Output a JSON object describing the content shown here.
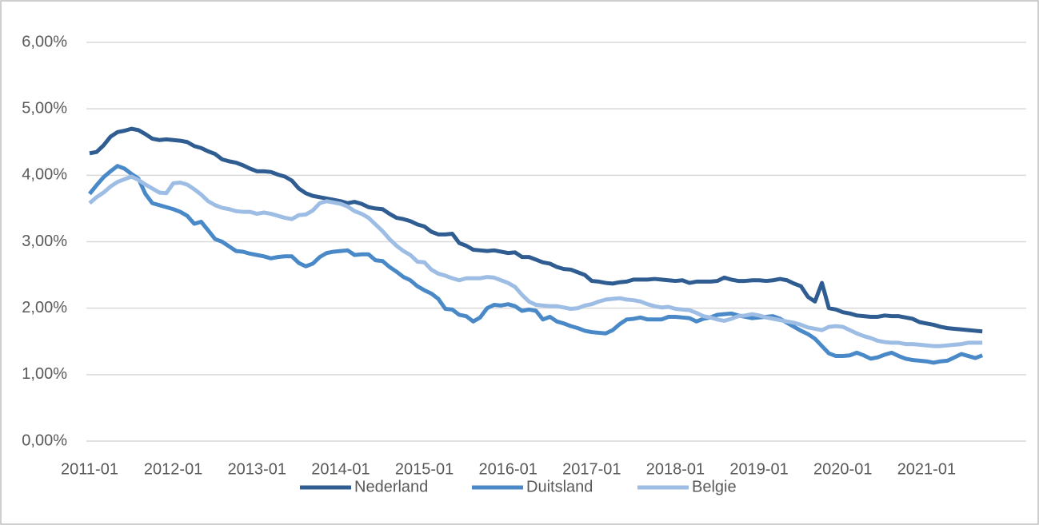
{
  "chart_data": {
    "type": "line",
    "categories": [
      "2011-01",
      null,
      null,
      null,
      null,
      null,
      null,
      null,
      null,
      null,
      null,
      null,
      "2012-01",
      null,
      null,
      null,
      null,
      null,
      null,
      null,
      null,
      null,
      null,
      null,
      "2013-01",
      null,
      null,
      null,
      null,
      null,
      null,
      null,
      null,
      null,
      null,
      null,
      "2014-01",
      null,
      null,
      null,
      null,
      null,
      null,
      null,
      null,
      null,
      null,
      null,
      "2015-01",
      null,
      null,
      null,
      null,
      null,
      null,
      null,
      null,
      null,
      null,
      null,
      "2016-01",
      null,
      null,
      null,
      null,
      null,
      null,
      null,
      null,
      null,
      null,
      null,
      "2017-01",
      null,
      null,
      null,
      null,
      null,
      null,
      null,
      null,
      null,
      null,
      null,
      "2018-01",
      null,
      null,
      null,
      null,
      null,
      null,
      null,
      null,
      null,
      null,
      null,
      "2019-01",
      null,
      null,
      null,
      null,
      null,
      null,
      null,
      null,
      null,
      null,
      null,
      "2020-01",
      null,
      null,
      null,
      null,
      null,
      null,
      null,
      null,
      null,
      null,
      null,
      "2021-01",
      null,
      null,
      null,
      null,
      null,
      null,
      null,
      null
    ],
    "series": [
      {
        "name": "Nederland",
        "color": "#2f5d92",
        "values": [
          4.33,
          4.35,
          4.45,
          4.58,
          4.65,
          4.67,
          4.7,
          4.68,
          4.62,
          4.55,
          4.53,
          4.54,
          4.53,
          4.52,
          4.5,
          4.44,
          4.41,
          4.36,
          4.32,
          4.24,
          4.21,
          4.19,
          4.15,
          4.1,
          4.06,
          4.06,
          4.05,
          4.01,
          3.98,
          3.92,
          3.8,
          3.73,
          3.69,
          3.67,
          3.65,
          3.63,
          3.61,
          3.58,
          3.6,
          3.57,
          3.52,
          3.5,
          3.49,
          3.42,
          3.36,
          3.34,
          3.31,
          3.26,
          3.23,
          3.15,
          3.11,
          3.11,
          3.12,
          2.98,
          2.94,
          2.88,
          2.87,
          2.86,
          2.87,
          2.85,
          2.83,
          2.84,
          2.77,
          2.77,
          2.73,
          2.69,
          2.67,
          2.62,
          2.59,
          2.58,
          2.54,
          2.5,
          2.41,
          2.4,
          2.38,
          2.37,
          2.39,
          2.4,
          2.43,
          2.43,
          2.43,
          2.44,
          2.43,
          2.42,
          2.41,
          2.42,
          2.38,
          2.4,
          2.4,
          2.4,
          2.41,
          2.46,
          2.43,
          2.41,
          2.41,
          2.42,
          2.42,
          2.41,
          2.42,
          2.44,
          2.42,
          2.37,
          2.33,
          2.17,
          2.1,
          2.38,
          2.0,
          1.98,
          1.94,
          1.92,
          1.89,
          1.88,
          1.87,
          1.87,
          1.89,
          1.88,
          1.88,
          1.86,
          1.84,
          1.79,
          1.77,
          1.75,
          1.72,
          1.7,
          1.69,
          1.68,
          1.67,
          1.66,
          1.65
        ]
      },
      {
        "name": "Duitsland",
        "color": "#4a89c8",
        "values": [
          3.72,
          3.85,
          3.97,
          4.06,
          4.14,
          4.1,
          4.02,
          3.95,
          3.72,
          3.58,
          3.55,
          3.52,
          3.49,
          3.45,
          3.39,
          3.27,
          3.3,
          3.17,
          3.04,
          3.0,
          2.93,
          2.86,
          2.85,
          2.82,
          2.8,
          2.78,
          2.75,
          2.77,
          2.78,
          2.78,
          2.68,
          2.63,
          2.67,
          2.77,
          2.83,
          2.85,
          2.86,
          2.87,
          2.8,
          2.81,
          2.81,
          2.72,
          2.71,
          2.62,
          2.55,
          2.47,
          2.42,
          2.33,
          2.27,
          2.22,
          2.14,
          1.99,
          1.98,
          1.9,
          1.88,
          1.8,
          1.86,
          2.0,
          2.05,
          2.04,
          2.06,
          2.03,
          1.96,
          1.98,
          1.96,
          1.83,
          1.87,
          1.8,
          1.77,
          1.73,
          1.7,
          1.66,
          1.64,
          1.63,
          1.62,
          1.67,
          1.76,
          1.83,
          1.84,
          1.86,
          1.83,
          1.83,
          1.83,
          1.87,
          1.87,
          1.86,
          1.85,
          1.8,
          1.84,
          1.86,
          1.9,
          1.91,
          1.92,
          1.89,
          1.87,
          1.85,
          1.86,
          1.87,
          1.88,
          1.84,
          1.78,
          1.72,
          1.66,
          1.61,
          1.54,
          1.43,
          1.32,
          1.28,
          1.28,
          1.29,
          1.33,
          1.29,
          1.24,
          1.26,
          1.3,
          1.33,
          1.28,
          1.24,
          1.22,
          1.21,
          1.2,
          1.18,
          1.2,
          1.21,
          1.26,
          1.31,
          1.28,
          1.25,
          1.29
        ]
      },
      {
        "name": "Belgie",
        "color": "#9dbde4",
        "values": [
          3.58,
          3.67,
          3.74,
          3.83,
          3.9,
          3.94,
          3.98,
          3.93,
          3.86,
          3.8,
          3.74,
          3.73,
          3.88,
          3.89,
          3.86,
          3.79,
          3.71,
          3.61,
          3.55,
          3.51,
          3.49,
          3.46,
          3.45,
          3.45,
          3.42,
          3.44,
          3.42,
          3.39,
          3.36,
          3.34,
          3.4,
          3.41,
          3.47,
          3.58,
          3.61,
          3.59,
          3.57,
          3.53,
          3.46,
          3.42,
          3.36,
          3.26,
          3.16,
          3.04,
          2.94,
          2.86,
          2.8,
          2.7,
          2.69,
          2.58,
          2.52,
          2.49,
          2.45,
          2.42,
          2.45,
          2.45,
          2.45,
          2.47,
          2.46,
          2.42,
          2.38,
          2.32,
          2.2,
          2.1,
          2.05,
          2.04,
          2.03,
          2.03,
          2.01,
          1.99,
          2.0,
          2.04,
          2.06,
          2.1,
          2.13,
          2.14,
          2.15,
          2.13,
          2.12,
          2.1,
          2.06,
          2.03,
          2.01,
          2.02,
          1.99,
          1.98,
          1.97,
          1.93,
          1.88,
          1.86,
          1.83,
          1.81,
          1.84,
          1.88,
          1.89,
          1.91,
          1.89,
          1.86,
          1.84,
          1.82,
          1.8,
          1.78,
          1.75,
          1.71,
          1.69,
          1.67,
          1.72,
          1.73,
          1.72,
          1.67,
          1.62,
          1.58,
          1.55,
          1.51,
          1.49,
          1.48,
          1.48,
          1.46,
          1.46,
          1.45,
          1.44,
          1.43,
          1.43,
          1.44,
          1.45,
          1.46,
          1.48,
          1.48,
          1.48
        ]
      }
    ],
    "ylim": [
      0,
      6
    ],
    "yticks": [
      {
        "value": 0,
        "label": "0,00%"
      },
      {
        "value": 1,
        "label": "1,00%"
      },
      {
        "value": 2,
        "label": "2,00%"
      },
      {
        "value": 3,
        "label": "3,00%"
      },
      {
        "value": 4,
        "label": "4,00%"
      },
      {
        "value": 5,
        "label": "5,00%"
      },
      {
        "value": 6,
        "label": "6,00%"
      }
    ],
    "grid": true,
    "legend": "bottom"
  }
}
